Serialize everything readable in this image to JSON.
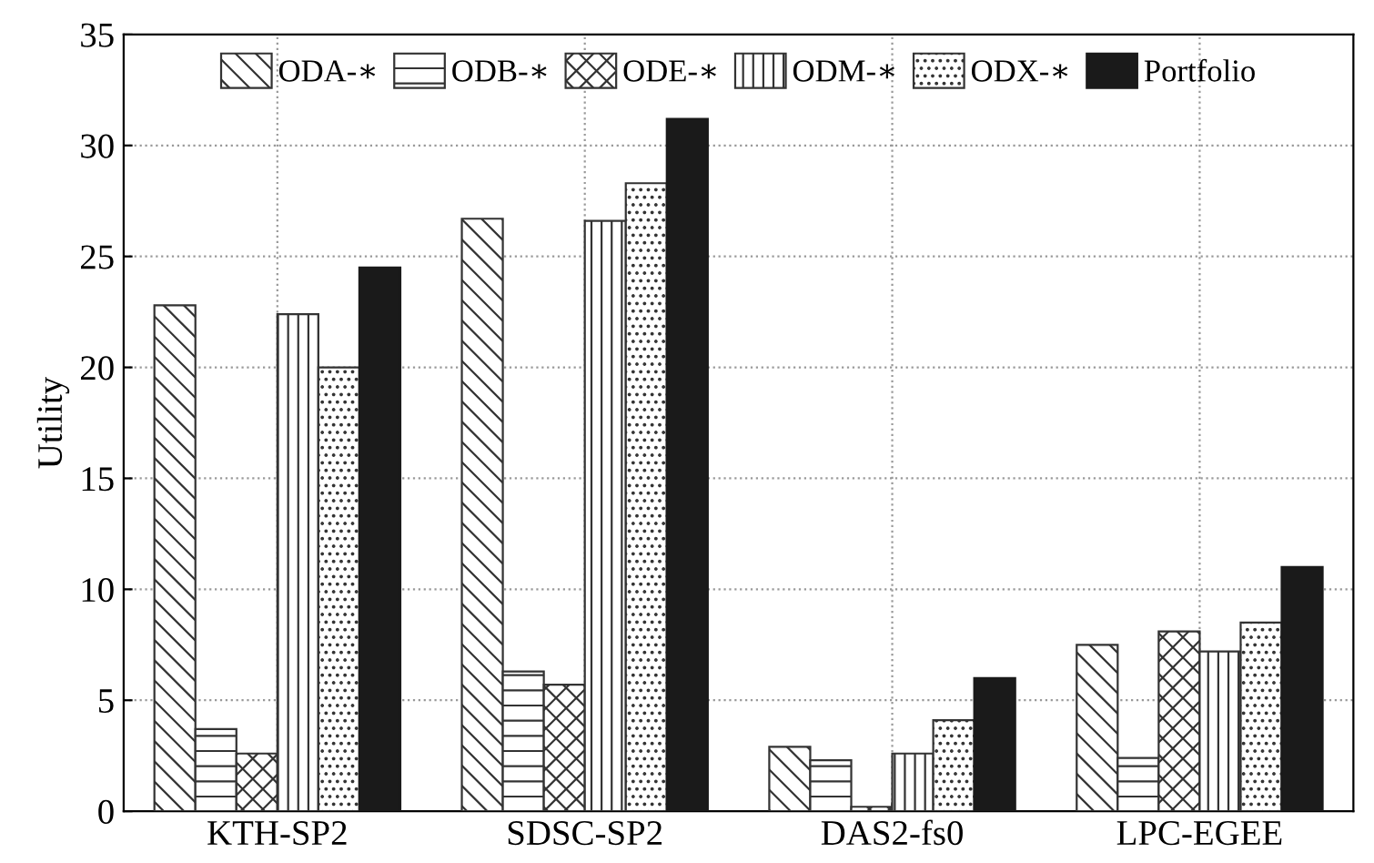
{
  "chart_data": {
    "type": "bar",
    "ylabel": "Utility",
    "categories": [
      "KTH-SP2",
      "SDSC-SP2",
      "DAS2-fs0",
      "LPC-EGEE"
    ],
    "series": [
      {
        "name": "ODA-∗",
        "color": "#333333",
        "values": [
          22.8,
          26.7,
          2.9,
          7.5
        ]
      },
      {
        "name": "ODB-∗",
        "color": "#333333",
        "values": [
          3.7,
          6.3,
          2.3,
          2.4
        ]
      },
      {
        "name": "ODE-∗",
        "color": "#333333",
        "values": [
          2.6,
          5.7,
          0.2,
          8.1
        ]
      },
      {
        "name": "ODM-∗",
        "color": "#333333",
        "values": [
          22.4,
          26.6,
          2.6,
          7.2
        ]
      },
      {
        "name": "ODX-∗",
        "color": "#333333",
        "values": [
          20.0,
          28.3,
          4.1,
          8.5
        ]
      },
      {
        "name": "Portfolio",
        "color": "#1a1a1a",
        "values": [
          24.5,
          31.2,
          6.0,
          11.0
        ]
      }
    ],
    "ylim": [
      0,
      35
    ],
    "yticks": [
      0,
      5,
      10,
      15,
      20,
      25,
      30,
      35
    ],
    "grid": true,
    "legend": "top"
  }
}
